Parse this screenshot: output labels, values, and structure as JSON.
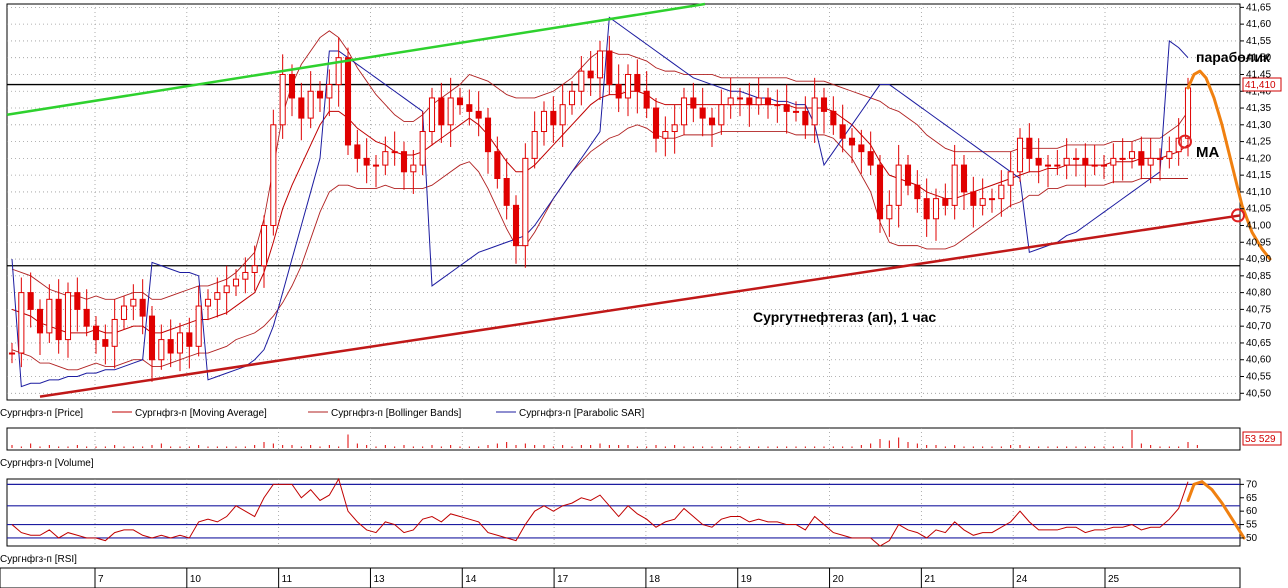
{
  "chart_data": {
    "type": "candlestick",
    "annotation_title": "Сургутнефтегаз (ап),  1 час",
    "annotations": {
      "parabolic": "параболик",
      "ma": "MA"
    },
    "price_axis": {
      "ticks": [
        "41,65",
        "41,60",
        "41,55",
        "41,50",
        "41,45",
        "41,40",
        "41,35",
        "41,30",
        "41,25",
        "41,20",
        "41,15",
        "41,10",
        "41,05",
        "41,00",
        "40,95",
        "40,90",
        "40,85",
        "40,80",
        "40,75",
        "40,70",
        "40,65",
        "40,60",
        "40,55",
        "40,50"
      ],
      "ylim": [
        40.48,
        41.66
      ],
      "last_price_label": "41,410"
    },
    "x_axis": {
      "labels": [
        "7",
        "10",
        "11",
        "13",
        "14",
        "17",
        "18",
        "19",
        "20",
        "21",
        "24",
        "25"
      ]
    },
    "horizontal_lines": [
      41.42,
      40.88
    ],
    "legend_price": [
      "Сургнфгз-п [Price]",
      "Сургнфгз-п [Moving Average]",
      "Сургнфгз-п [Bollinger Bands]",
      "Сургнфгз-п [Parabolic SAR]"
    ],
    "volume": {
      "label": "Сургнфгз-п [Volume]",
      "last_value_label": "53 529"
    },
    "rsi": {
      "label": "Сургнфгз-п [RSI]",
      "ticks": [
        "70",
        "65",
        "60",
        "55",
        "50"
      ],
      "levels": [
        70,
        62,
        55,
        50
      ]
    },
    "colors": {
      "candle": "#e00000",
      "ma": "#c00000",
      "bb": "#b02020",
      "sar": "#1c1ca0",
      "green_trend": "#2ed12e",
      "red_trend": "#c01818",
      "forecast": "#f08010",
      "grid": "#9a9a9a",
      "level": "#000000"
    },
    "series": {
      "closes": [
        40.62,
        40.8,
        40.75,
        40.68,
        40.78,
        40.66,
        40.8,
        40.75,
        40.7,
        40.66,
        40.64,
        40.72,
        40.76,
        40.78,
        40.73,
        40.6,
        40.66,
        40.62,
        40.68,
        40.64,
        40.76,
        40.78,
        40.8,
        40.82,
        40.84,
        40.86,
        40.88,
        41,
        41.3,
        41.45,
        41.38,
        41.32,
        41.4,
        41.38,
        41.42,
        41.5,
        41.24,
        41.2,
        41.18,
        41.18,
        41.22,
        41.22,
        41.16,
        41.18,
        41.28,
        41.38,
        41.3,
        41.38,
        41.36,
        41.34,
        41.32,
        41.22,
        41.14,
        41.06,
        40.94,
        41.2,
        41.28,
        41.34,
        41.3,
        41.36,
        41.4,
        41.46,
        41.44,
        41.52,
        41.42,
        41.38,
        41.45,
        41.4,
        41.35,
        41.26,
        41.28,
        41.3,
        41.38,
        41.35,
        41.32,
        41.3,
        41.36,
        41.38,
        41.38,
        41.36,
        41.38,
        41.36,
        41.36,
        41.34,
        41.34,
        41.3,
        41.38,
        41.34,
        41.3,
        41.26,
        41.24,
        41.22,
        41.18,
        41.02,
        41.06,
        41.18,
        41.12,
        41.08,
        41.02,
        41.08,
        41.06,
        41.18,
        41.1,
        41.06,
        41.08,
        41.08,
        41.12,
        41.16,
        41.26,
        41.2,
        41.18,
        41.18,
        41.18,
        41.2,
        41.2,
        41.18,
        41.18,
        41.18,
        41.2,
        41.2,
        41.22,
        41.18,
        41.2,
        41.2,
        41.22,
        41.26,
        41.41
      ],
      "ma": [
        40.75,
        40.74,
        40.73,
        40.71,
        40.7,
        40.69,
        40.68,
        40.68,
        40.68,
        40.69,
        40.68,
        40.68,
        40.69,
        40.7,
        40.7,
        40.68,
        40.68,
        40.69,
        40.7,
        40.71,
        40.72,
        40.72,
        40.73,
        40.74,
        40.76,
        40.78,
        40.8,
        40.86,
        40.95,
        41.05,
        41.12,
        41.18,
        41.24,
        41.3,
        41.34,
        41.34,
        41.32,
        41.29,
        41.27,
        41.25,
        41.24,
        41.22,
        41.21,
        41.21,
        41.22,
        41.24,
        41.26,
        41.28,
        41.3,
        41.32,
        41.3,
        41.27,
        41.23,
        41.19,
        41.16,
        41.16,
        41.18,
        41.21,
        41.24,
        41.27,
        41.3,
        41.33,
        41.36,
        41.38,
        41.39,
        41.39,
        41.4,
        41.4,
        41.39,
        41.37,
        41.36,
        41.36,
        41.36,
        41.36,
        41.36,
        41.36,
        41.36,
        41.36,
        41.36,
        41.36,
        41.36,
        41.36,
        41.36,
        41.36,
        41.35,
        41.35,
        41.35,
        41.35,
        41.34,
        41.32,
        41.3,
        41.27,
        41.24,
        41.19,
        41.15,
        41.14,
        41.13,
        41.12,
        41.1,
        41.09,
        41.08,
        41.08,
        41.09,
        41.1,
        41.11,
        41.12,
        41.13,
        41.14,
        41.15,
        41.16,
        41.16,
        41.17,
        41.17,
        41.18,
        41.18,
        41.18,
        41.18,
        41.18,
        41.19,
        41.19,
        41.19,
        41.2,
        41.2,
        41.2,
        41.21,
        41.22,
        41.24
      ],
      "bb_width": [
        0.12,
        0.12,
        0.12,
        0.12,
        0.11,
        0.11,
        0.11,
        0.11,
        0.1,
        0.1,
        0.1,
        0.1,
        0.1,
        0.1,
        0.1,
        0.1,
        0.1,
        0.1,
        0.1,
        0.1,
        0.1,
        0.1,
        0.1,
        0.1,
        0.1,
        0.11,
        0.12,
        0.16,
        0.22,
        0.28,
        0.3,
        0.3,
        0.28,
        0.26,
        0.24,
        0.22,
        0.2,
        0.18,
        0.16,
        0.14,
        0.12,
        0.11,
        0.1,
        0.1,
        0.11,
        0.12,
        0.12,
        0.12,
        0.12,
        0.13,
        0.14,
        0.16,
        0.18,
        0.2,
        0.22,
        0.22,
        0.2,
        0.18,
        0.16,
        0.15,
        0.14,
        0.14,
        0.14,
        0.14,
        0.13,
        0.12,
        0.11,
        0.1,
        0.1,
        0.1,
        0.1,
        0.1,
        0.09,
        0.09,
        0.09,
        0.09,
        0.08,
        0.08,
        0.08,
        0.08,
        0.08,
        0.08,
        0.08,
        0.08,
        0.08,
        0.08,
        0.08,
        0.08,
        0.08,
        0.09,
        0.1,
        0.12,
        0.14,
        0.18,
        0.2,
        0.2,
        0.19,
        0.18,
        0.17,
        0.16,
        0.15,
        0.14,
        0.13,
        0.12,
        0.11,
        0.1,
        0.09,
        0.08,
        0.08,
        0.07,
        0.07,
        0.06,
        0.06,
        0.06,
        0.06,
        0.06,
        0.06,
        0.06,
        0.06,
        0.06,
        0.06,
        0.06,
        0.06,
        0.06,
        0.07,
        0.08,
        0.1
      ],
      "sar": [
        40.9,
        40.52,
        40.53,
        40.53,
        40.54,
        40.54,
        40.55,
        40.55,
        40.56,
        40.56,
        40.57,
        40.57,
        40.58,
        40.59,
        40.6,
        40.89,
        40.88,
        40.87,
        40.86,
        40.86,
        40.85,
        40.54,
        40.55,
        40.56,
        40.57,
        40.58,
        40.6,
        40.63,
        40.7,
        40.8,
        40.9,
        41,
        41.1,
        41.2,
        41.52,
        41.52,
        41.5,
        41.48,
        41.46,
        41.44,
        41.42,
        41.4,
        41.38,
        41.36,
        41.34,
        40.82,
        40.84,
        40.86,
        40.88,
        40.9,
        40.92,
        40.93,
        40.94,
        40.95,
        40.96,
        40.97,
        41.0,
        41.04,
        41.08,
        41.12,
        41.16,
        41.2,
        41.24,
        41.28,
        41.62,
        41.6,
        41.58,
        41.56,
        41.54,
        41.52,
        41.5,
        41.48,
        41.46,
        41.44,
        41.43,
        41.42,
        41.41,
        41.4,
        41.4,
        41.39,
        41.38,
        41.38,
        41.37,
        41.37,
        41.36,
        41.36,
        41.3,
        41.18,
        41.22,
        41.26,
        41.3,
        41.34,
        41.38,
        41.42,
        41.42,
        41.4,
        41.38,
        41.36,
        41.34,
        41.32,
        41.3,
        41.28,
        41.26,
        41.24,
        41.22,
        41.2,
        41.18,
        41.16,
        41.14,
        40.92,
        40.93,
        40.94,
        40.95,
        40.97,
        40.98,
        41.0,
        41.02,
        41.04,
        41.06,
        41.08,
        41.1,
        41.12,
        41.14,
        41.16,
        41.55,
        41.53,
        41.5
      ],
      "volume": [
        2,
        1,
        3,
        1,
        2,
        1,
        1,
        2,
        1,
        1,
        1,
        2,
        1,
        1,
        1,
        2,
        3,
        1,
        1,
        1,
        2,
        1,
        1,
        1,
        1,
        1,
        2,
        4,
        3,
        2,
        2,
        1,
        2,
        1,
        2,
        1,
        9,
        3,
        2,
        1,
        2,
        1,
        2,
        1,
        1,
        2,
        1,
        2,
        1,
        1,
        1,
        2,
        3,
        4,
        2,
        3,
        2,
        2,
        1,
        2,
        1,
        2,
        2,
        3,
        2,
        2,
        2,
        1,
        1,
        2,
        1,
        2,
        1,
        1,
        1,
        1,
        1,
        1,
        1,
        1,
        1,
        1,
        1,
        1,
        1,
        1,
        1,
        1,
        1,
        1,
        1,
        2,
        3,
        6,
        5,
        7,
        4,
        3,
        2,
        2,
        1,
        2,
        1,
        1,
        1,
        1,
        1,
        2,
        2,
        1,
        1,
        1,
        1,
        1,
        1,
        1,
        1,
        1,
        1,
        1,
        12,
        3,
        2,
        1,
        1,
        1,
        4,
        2
      ],
      "rsi": [
        55,
        52,
        51,
        51,
        53,
        50,
        52,
        51,
        50,
        50,
        49,
        52,
        53,
        53,
        51,
        50,
        51,
        50,
        51,
        50,
        56,
        57,
        56,
        58,
        62,
        60,
        58,
        65,
        70,
        70,
        70,
        65,
        68,
        64,
        66,
        72,
        60,
        56,
        53,
        52,
        56,
        55,
        52,
        53,
        57,
        58,
        56,
        59,
        58,
        57,
        56,
        52,
        51,
        50,
        49,
        55,
        60,
        62,
        60,
        62,
        63,
        65,
        64,
        66,
        62,
        58,
        62,
        59,
        57,
        54,
        56,
        57,
        61,
        58,
        55,
        54,
        57,
        58,
        58,
        56,
        57,
        56,
        56,
        55,
        55,
        53,
        58,
        55,
        52,
        51,
        50,
        50,
        50,
        47,
        49,
        55,
        53,
        52,
        50,
        53,
        52,
        56,
        53,
        51,
        52,
        52,
        54,
        56,
        60,
        56,
        53,
        53,
        53,
        54,
        54,
        52,
        53,
        53,
        54,
        54,
        55,
        53,
        54,
        54,
        57,
        61,
        71
      ]
    }
  }
}
